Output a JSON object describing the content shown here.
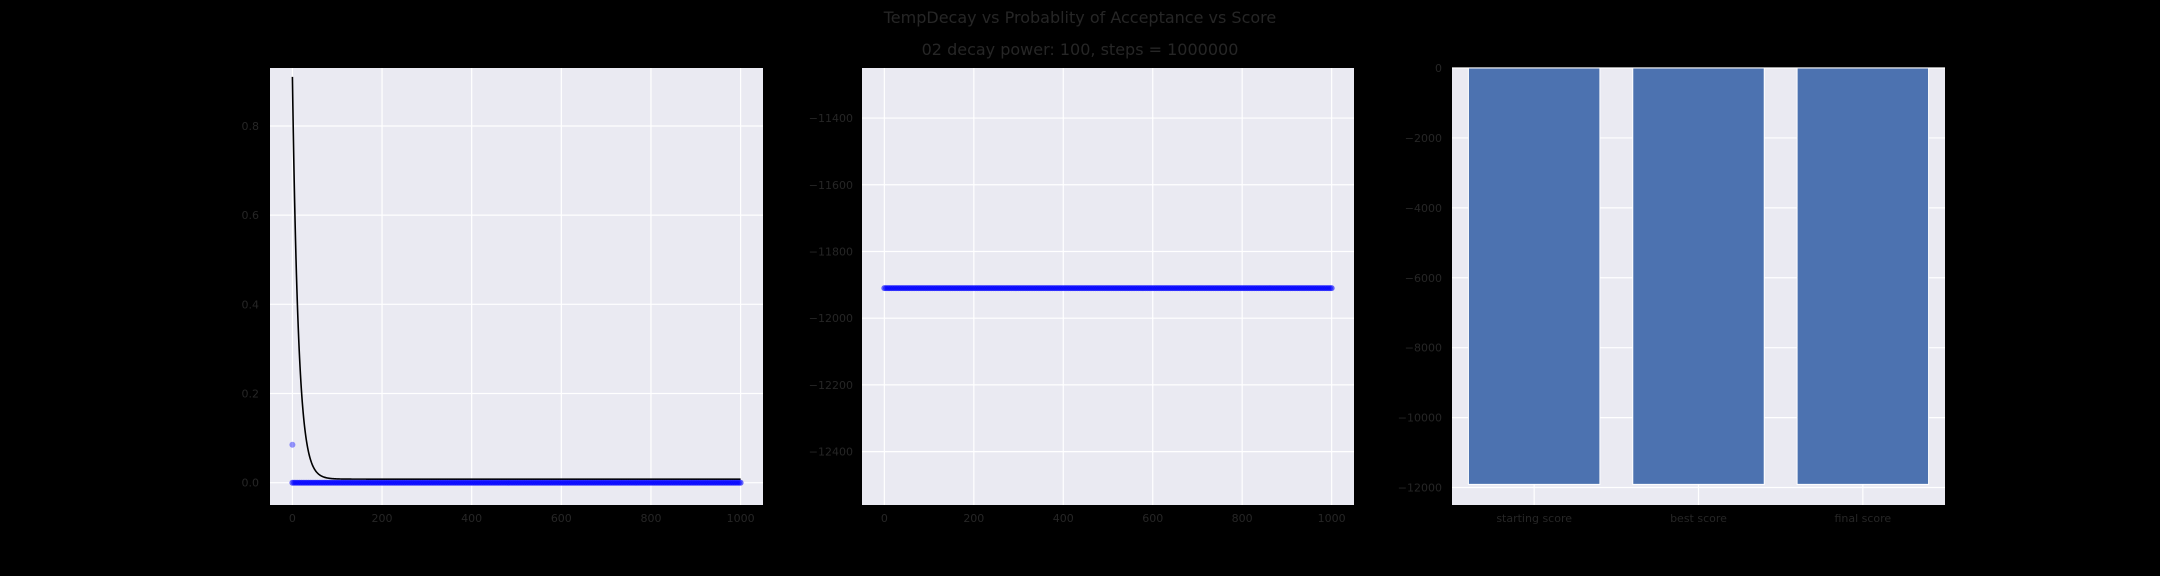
{
  "figure": {
    "title": "TempDecay vs Probablity of Acceptance vs Score",
    "subtitle": "02 decay power: 100, steps = 1000000"
  },
  "chart_data": [
    {
      "type": "line",
      "xlim": [
        -50,
        1050
      ],
      "ylim": [
        -0.05,
        0.93
      ],
      "grid": true,
      "xticks": [
        0,
        200,
        400,
        600,
        800,
        1000
      ],
      "yticks": [
        0.0,
        0.2,
        0.4,
        0.6,
        0.8
      ],
      "ytick_labels": [
        "0.0",
        "0.2",
        "0.4",
        "0.6",
        "0.8"
      ],
      "series": [
        {
          "kind": "line",
          "color": "#000000",
          "function": "exponential_decay",
          "start_y": 0.91,
          "end_y": 0.008,
          "x_range": [
            0,
            1000
          ]
        },
        {
          "kind": "scatter",
          "color": "#0000ff",
          "points": [
            [
              0,
              0.085
            ]
          ],
          "dense_x_range": [
            0,
            1000
          ],
          "dense_y": 0.0
        }
      ]
    },
    {
      "type": "scatter",
      "xlim": [
        -50,
        1050
      ],
      "ylim": [
        -12560,
        -11250
      ],
      "grid": true,
      "xticks": [
        0,
        200,
        400,
        600,
        800,
        1000
      ],
      "yticks": [
        -11400,
        -11600,
        -11800,
        -12000,
        -12200,
        -12400
      ],
      "ytick_labels": [
        "−11400",
        "−11600",
        "−11800",
        "−12000",
        "−12200",
        "−12400"
      ],
      "series": [
        {
          "kind": "scatter",
          "color": "#0000ff",
          "dense_x_range": [
            0,
            1000
          ],
          "dense_y": -11910
        }
      ]
    },
    {
      "type": "bar",
      "categories": [
        "starting score",
        "best score",
        "final score"
      ],
      "values": [
        -11910,
        -11910,
        -11910
      ],
      "color": "#4c72b0",
      "ylim": [
        -12500,
        0
      ],
      "grid": true,
      "yticks": [
        0,
        -2000,
        -4000,
        -6000,
        -8000,
        -10000,
        -12000
      ],
      "ytick_labels": [
        "0",
        "−2000",
        "−4000",
        "−6000",
        "−8000",
        "−10000",
        "−12000"
      ]
    }
  ]
}
